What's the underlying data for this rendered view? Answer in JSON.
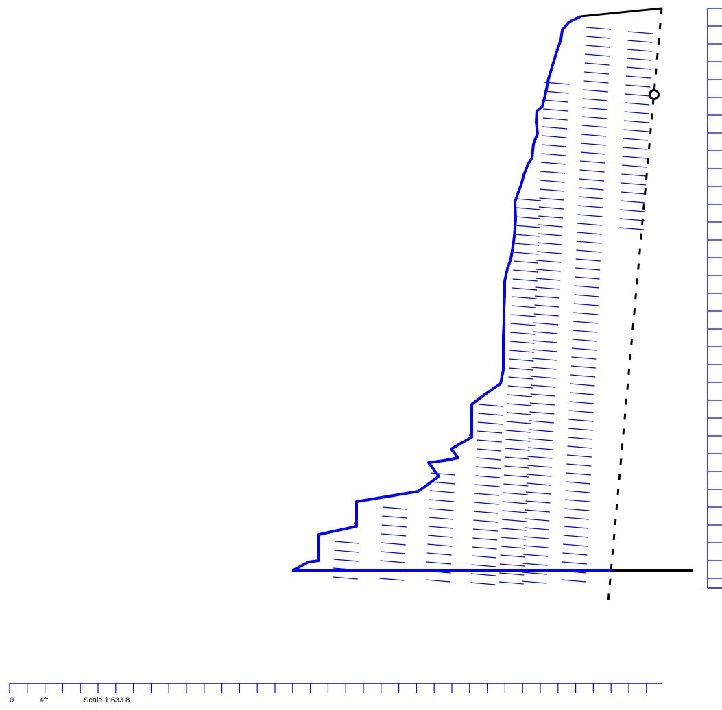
{
  "colors": {
    "wall_line": "#0000ff",
    "hatch": "#0000ff",
    "ground": "#000000",
    "ruler": "#0000ff",
    "bottom_ruler": "#0000ff",
    "marker": "#000000",
    "background": "#ffffff"
  },
  "scale_bar": {
    "zero_label": "0",
    "unit_label": "4ft",
    "scale_label": "Scale 1:633.8"
  },
  "marker": {
    "icon": "circle-marker-icon"
  }
}
